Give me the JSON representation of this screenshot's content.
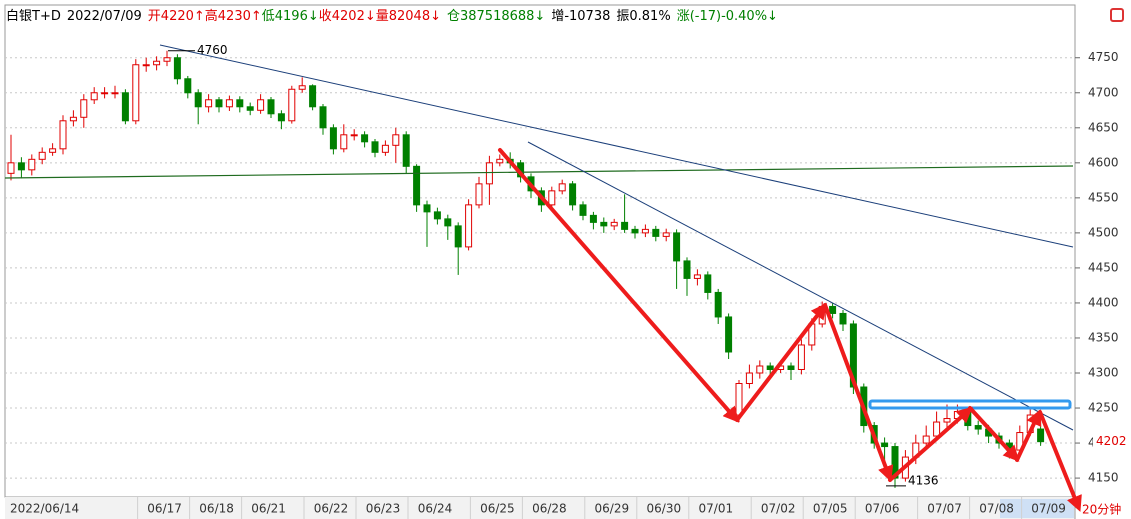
{
  "header": {
    "fields": [
      {
        "text": "白银T+D",
        "color": "#000000"
      },
      {
        "text": "2022/07/09",
        "color": "#000000"
      },
      {
        "text": "开4220↑",
        "color": "#e00000"
      },
      {
        "text": "高4230↑",
        "color": "#e00000"
      },
      {
        "text": "低4196↓",
        "color": "#008000"
      },
      {
        "text": "收4202↓",
        "color": "#e00000"
      },
      {
        "text": "量82048↓",
        "color": "#e00000"
      },
      {
        "text": "仓387518688↓",
        "color": "#008000"
      },
      {
        "text": "增-10738",
        "color": "#000000"
      },
      {
        "text": "振0.81%",
        "color": "#000000"
      },
      {
        "text": "涨(-17)-0.40%↓",
        "color": "#008000"
      }
    ]
  },
  "chart_data": {
    "type": "candlestick",
    "categories": [
      "2022/06/14",
      null,
      null,
      null,
      null,
      null,
      null,
      null,
      null,
      null,
      null,
      null,
      null,
      null,
      "06/17",
      null,
      null,
      null,
      null,
      "06/18",
      null,
      null,
      null,
      null,
      "06/21",
      null,
      null,
      null,
      null,
      null,
      "06/22",
      null,
      null,
      null,
      null,
      "06/23",
      null,
      null,
      null,
      null,
      "06/24",
      null,
      null,
      null,
      null,
      null,
      "06/25",
      null,
      null,
      null,
      null,
      "06/28",
      null,
      null,
      null,
      null,
      null,
      "06/29",
      null,
      null,
      null,
      null,
      "06/30",
      null,
      null,
      null,
      null,
      "07/01",
      null,
      null,
      null,
      null,
      null,
      "07/02",
      null,
      null,
      null,
      null,
      "07/05",
      null,
      null,
      null,
      null,
      "07/06",
      null,
      null,
      null,
      null,
      null,
      "07/07",
      null,
      null,
      null,
      null,
      "07/08",
      null,
      null,
      null,
      null,
      "07/09"
    ],
    "open": [
      4585,
      4600,
      4590,
      4605,
      4615,
      4620,
      4660,
      4665,
      4690,
      4700,
      4700,
      4700,
      4660,
      4740,
      4740,
      4745,
      4750,
      4720,
      4700,
      4680,
      4690,
      4680,
      4690,
      4680,
      4675,
      4690,
      4670,
      4660,
      4705,
      4710,
      4680,
      4650,
      4620,
      4640,
      4640,
      4630,
      4615,
      4625,
      4640,
      4595,
      4540,
      4530,
      4520,
      4510,
      4480,
      4540,
      4570,
      4600,
      4605,
      4600,
      4580,
      4560,
      4540,
      4560,
      4570,
      4540,
      4525,
      4515,
      4510,
      4515,
      4505,
      4500,
      4505,
      4495,
      4500,
      4460,
      4435,
      4440,
      4415,
      4380,
      4240,
      4285,
      4300,
      4310,
      4305,
      4310,
      4305,
      4340,
      4370,
      4395,
      4385,
      4370,
      4280,
      4225,
      4200,
      4195,
      4150,
      4180,
      4200,
      4210,
      4230,
      4235,
      4245,
      4225,
      4220,
      4210,
      4200,
      4190,
      4215,
      4220
    ],
    "close": [
      4600,
      4590,
      4605,
      4615,
      4620,
      4660,
      4665,
      4690,
      4700,
      4700,
      4700,
      4660,
      4740,
      4740,
      4745,
      4750,
      4720,
      4700,
      4680,
      4690,
      4680,
      4690,
      4680,
      4675,
      4690,
      4670,
      4660,
      4705,
      4710,
      4680,
      4650,
      4620,
      4640,
      4640,
      4630,
      4615,
      4625,
      4640,
      4595,
      4540,
      4530,
      4520,
      4510,
      4480,
      4540,
      4570,
      4600,
      4605,
      4600,
      4580,
      4560,
      4540,
      4560,
      4570,
      4540,
      4525,
      4515,
      4510,
      4515,
      4505,
      4500,
      4505,
      4495,
      4500,
      4460,
      4435,
      4440,
      4415,
      4380,
      4330,
      4285,
      4300,
      4310,
      4305,
      4310,
      4305,
      4340,
      4370,
      4395,
      4385,
      4370,
      4280,
      4225,
      4200,
      4195,
      4150,
      4180,
      4200,
      4210,
      4230,
      4235,
      4245,
      4225,
      4220,
      4210,
      4200,
      4190,
      4215,
      4240,
      4202
    ],
    "high": [
      4640,
      4608,
      4612,
      4622,
      4628,
      4668,
      4675,
      4698,
      4708,
      4708,
      4710,
      4705,
      4748,
      4750,
      4752,
      4760,
      4755,
      4724,
      4705,
      4698,
      4694,
      4696,
      4695,
      4686,
      4698,
      4694,
      4675,
      4710,
      4722,
      4712,
      4684,
      4655,
      4655,
      4648,
      4645,
      4634,
      4632,
      4650,
      4645,
      4598,
      4546,
      4536,
      4526,
      4515,
      4548,
      4580,
      4610,
      4612,
      4615,
      4604,
      4585,
      4565,
      4566,
      4576,
      4574,
      4545,
      4530,
      4522,
      4520,
      4555,
      4510,
      4512,
      4510,
      4506,
      4505,
      4465,
      4448,
      4445,
      4420,
      4385,
      4290,
      4312,
      4318,
      4315,
      4318,
      4315,
      4348,
      4378,
      4402,
      4400,
      4390,
      4375,
      4285,
      4230,
      4208,
      4200,
      4190,
      4212,
      4225,
      4245,
      4255,
      4255,
      4250,
      4232,
      4226,
      4215,
      4205,
      4225,
      4248,
      4230
    ],
    "low": [
      4575,
      4578,
      4582,
      4598,
      4610,
      4612,
      4652,
      4650,
      4684,
      4692,
      4692,
      4655,
      4655,
      4730,
      4732,
      4738,
      4712,
      4692,
      4655,
      4672,
      4672,
      4674,
      4672,
      4668,
      4670,
      4664,
      4648,
      4656,
      4700,
      4675,
      4640,
      4612,
      4615,
      4632,
      4622,
      4608,
      4610,
      4600,
      4585,
      4530,
      4480,
      4512,
      4490,
      4440,
      4475,
      4535,
      4540,
      4595,
      4592,
      4572,
      4550,
      4530,
      4534,
      4555,
      4532,
      4518,
      4505,
      4500,
      4504,
      4500,
      4492,
      4494,
      4488,
      4488,
      4420,
      4410,
      4425,
      4405,
      4370,
      4320,
      4230,
      4278,
      4292,
      4298,
      4300,
      4290,
      4298,
      4332,
      4365,
      4378,
      4360,
      4270,
      4215,
      4192,
      4160,
      4136,
      4145,
      4170,
      4195,
      4205,
      4222,
      4228,
      4218,
      4212,
      4200,
      4192,
      4178,
      4185,
      4210,
      4196
    ],
    "ylim": [
      4123,
      4821
    ],
    "yticks": [
      4150,
      4200,
      4250,
      4300,
      4350,
      4400,
      4450,
      4500,
      4550,
      4600,
      4650,
      4700,
      4750
    ],
    "grid": true,
    "up_color": "#e00000",
    "down_color": "#008000",
    "max_label": 4760,
    "min_label": 4136,
    "last_price": 4202,
    "interval": "20分钟"
  }
}
